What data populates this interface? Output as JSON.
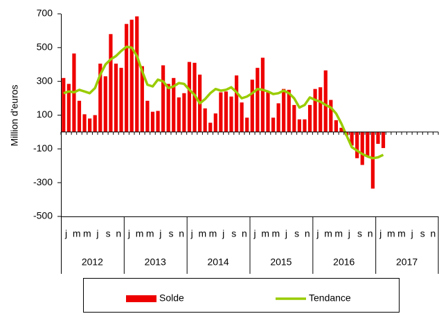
{
  "chart_data": {
    "type": "bar",
    "y_label": "Million d'euros",
    "categories": [
      "j",
      null,
      "m",
      null,
      "m",
      null,
      "j",
      null,
      "s",
      null,
      "n",
      null,
      "j",
      null,
      "m",
      null,
      "m",
      null,
      "j",
      null,
      "s",
      null,
      "n",
      null,
      "j",
      null,
      "m",
      null,
      "m",
      null,
      "j",
      null,
      "s",
      null,
      "n",
      null,
      "j",
      null,
      "m",
      null,
      "m",
      null,
      "j",
      null,
      "s",
      null,
      "n",
      null,
      "j",
      null,
      "m",
      null,
      "m",
      null,
      "j",
      null,
      "s",
      null,
      "n",
      null,
      "j",
      null,
      "m",
      null,
      "m",
      null,
      "j",
      null,
      "s",
      null,
      "n",
      null
    ],
    "groups": [
      "2012",
      "2013",
      "2014",
      "2015",
      "2016",
      "2017"
    ],
    "series": [
      {
        "name": "Solde",
        "type": "bar",
        "color": "#ee0000",
        "values": [
          320,
          285,
          465,
          185,
          105,
          80,
          100,
          405,
          330,
          580,
          405,
          380,
          640,
          665,
          685,
          390,
          185,
          120,
          125,
          395,
          285,
          320,
          205,
          230,
          415,
          410,
          340,
          140,
          55,
          110,
          235,
          240,
          210,
          335,
          175,
          85,
          310,
          380,
          440,
          235,
          85,
          170,
          255,
          250,
          160,
          75,
          75,
          160,
          255,
          265,
          365,
          190,
          70,
          25,
          -20,
          -80,
          -155,
          -195,
          -140,
          -335,
          -70,
          -95,
          null,
          null,
          null,
          null,
          null,
          null,
          null,
          null,
          null,
          null
        ]
      },
      {
        "name": "Tendance",
        "type": "line",
        "color": "#99cc00",
        "values": [
          230,
          240,
          235,
          250,
          240,
          230,
          260,
          340,
          400,
          430,
          450,
          480,
          505,
          500,
          450,
          360,
          280,
          270,
          310,
          300,
          260,
          270,
          290,
          285,
          250,
          220,
          170,
          195,
          230,
          255,
          245,
          250,
          265,
          235,
          200,
          210,
          230,
          255,
          250,
          240,
          225,
          230,
          245,
          230,
          200,
          145,
          160,
          205,
          190,
          180,
          160,
          145,
          110,
          50,
          -20,
          -90,
          -110,
          -130,
          -145,
          -155,
          -150,
          -135,
          null,
          null,
          null,
          null,
          null,
          null,
          null,
          null,
          null,
          null
        ]
      }
    ],
    "ylim": [
      -500,
      700
    ],
    "yticks": [
      -500,
      -300,
      -100,
      100,
      300,
      500,
      700
    ]
  }
}
